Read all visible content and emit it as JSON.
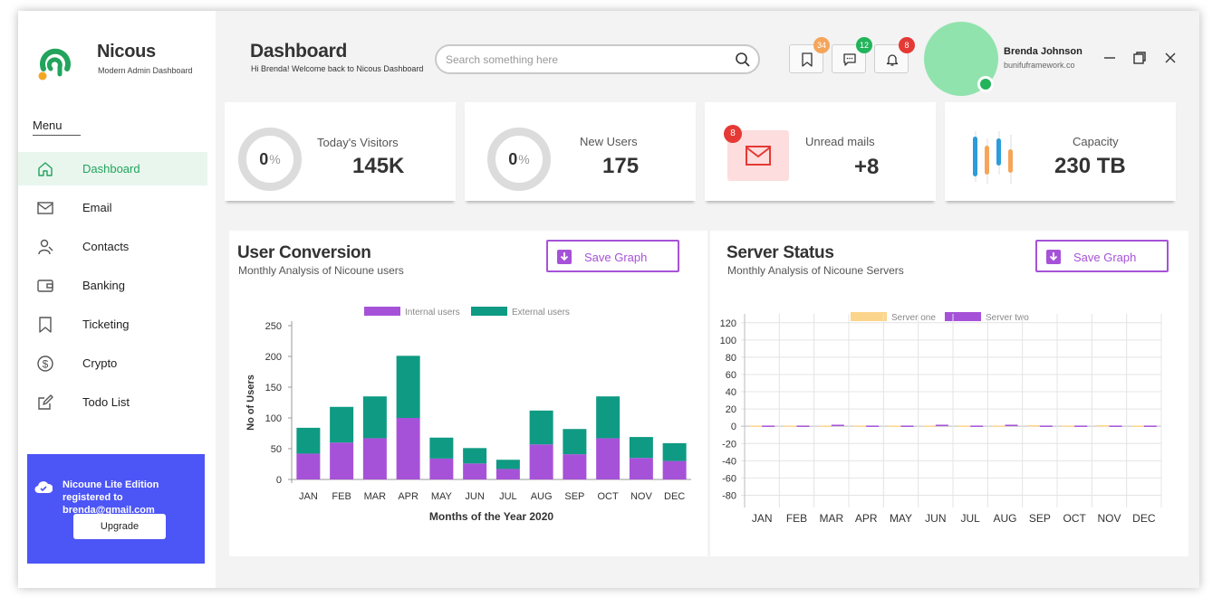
{
  "brand": {
    "name": "Nicous",
    "tagline": "Modern Admin Dashboard"
  },
  "sidebar": {
    "menu_label": "Menu",
    "items": [
      {
        "label": "Dashboard",
        "icon": "home-icon",
        "active": true
      },
      {
        "label": "Email",
        "icon": "mail-icon"
      },
      {
        "label": "Contacts",
        "icon": "user-icon"
      },
      {
        "label": "Banking",
        "icon": "wallet-icon"
      },
      {
        "label": "Ticketing",
        "icon": "bookmark-icon"
      },
      {
        "label": "Crypto",
        "icon": "dollar-icon"
      },
      {
        "label": "Todo List",
        "icon": "edit-icon"
      }
    ],
    "promo": {
      "text": "Nicoune Lite Edition registered to brenda@gmail.com",
      "button": "Upgrade"
    }
  },
  "header": {
    "title": "Dashboard",
    "subtitle": "Hi Brenda! Welcome back to Nicous Dashboard",
    "search_placeholder": "Search something here",
    "badges": {
      "bookmarks": "34",
      "messages": "12",
      "notifications": "8"
    },
    "user": {
      "name": "Brenda Johnson",
      "site": "bunifuframework.co"
    }
  },
  "colors": {
    "accent": "#22a45d",
    "purple": "#a652d8",
    "teal": "#0f9a83",
    "orange": "#f5a55a",
    "green_badge": "#22b45a",
    "red": "#e53935",
    "promo": "#4c55f5",
    "server_one": "#fcd58c"
  },
  "stats": {
    "visitors": {
      "label": "Today's Visitors",
      "percent": "0",
      "pct_sign": "%",
      "value": "145K"
    },
    "new_users": {
      "label": "New Users",
      "percent": "0",
      "pct_sign": "%",
      "value": "175"
    },
    "mails": {
      "label": "Unread mails",
      "badge": "8",
      "value": "+8"
    },
    "capacity": {
      "label": "Capacity",
      "value": "230 TB"
    }
  },
  "user_conversion": {
    "title": "User Conversion",
    "subtitle": "Monthly Analysis of Nicoune users",
    "save_label": "Save Graph"
  },
  "server_status": {
    "title": "Server Status",
    "subtitle": "Monthly Analysis of Nicoune Servers",
    "save_label": "Save Graph"
  },
  "chart_data": [
    {
      "type": "bar",
      "stacked": true,
      "categories": [
        "JAN",
        "FEB",
        "MAR",
        "APR",
        "MAY",
        "JUN",
        "JUL",
        "AUG",
        "SEP",
        "OCT",
        "NOV",
        "DEC"
      ],
      "series": [
        {
          "name": "Internal users",
          "color": "#a652d8",
          "values": [
            42,
            60,
            67,
            100,
            34,
            26,
            17,
            57,
            41,
            67,
            35,
            30
          ]
        },
        {
          "name": "External users",
          "color": "#0f9a83",
          "values": [
            42,
            58,
            68,
            101,
            34,
            25,
            15,
            55,
            41,
            68,
            34,
            29
          ]
        }
      ],
      "xlabel": "Months of the Year 2020",
      "ylabel": "No of Users",
      "yticks": [
        0,
        50,
        100,
        150,
        200,
        250
      ],
      "ylim": [
        0,
        250
      ],
      "legend": "top",
      "grid": false
    },
    {
      "type": "bar",
      "categories": [
        "JAN",
        "FEB",
        "MAR",
        "APR",
        "MAY",
        "JUN",
        "JUL",
        "AUG",
        "SEP",
        "OCT",
        "NOV",
        "DEC"
      ],
      "series": [
        {
          "name": "Server one",
          "color": "#fcd58c",
          "values": [
            0,
            0,
            -0.5,
            -1,
            0,
            0,
            0,
            -0.5,
            0.5,
            -0.5,
            0.5,
            0
          ]
        },
        {
          "name": "Server two",
          "color": "#a652d8",
          "values": [
            -1,
            -0.5,
            1,
            0,
            -1,
            1,
            -0.5,
            1,
            0,
            -1,
            0,
            -1
          ]
        }
      ],
      "yticks": [
        -80,
        -60,
        -40,
        -20,
        0,
        20,
        40,
        60,
        80,
        100,
        120
      ],
      "ylim": [
        -90,
        125
      ],
      "legend": "top",
      "grid": true
    }
  ]
}
